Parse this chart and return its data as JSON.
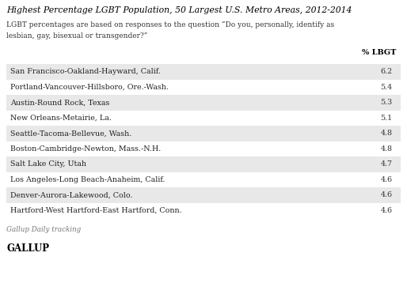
{
  "title": "Highest Percentage LGBT Population, 50 Largest U.S. Metro Areas, 2012-2014",
  "subtitle_line1": "LGBT percentages are based on responses to the question “Do you, personally, identify as",
  "subtitle_line2": "lesbian, gay, bisexual or transgender?”",
  "column_header": "% LBGT",
  "rows": [
    {
      "city": "San Francisco-Oakland-Hayward, Calif.",
      "value": "6.2",
      "shaded": true
    },
    {
      "city": "Portland-Vancouver-Hillsboro, Ore.-Wash.",
      "value": "5.4",
      "shaded": false
    },
    {
      "city": "Austin-Round Rock, Texas",
      "value": "5.3",
      "shaded": true
    },
    {
      "city": "New Orleans-Metairie, La.",
      "value": "5.1",
      "shaded": false
    },
    {
      "city": "Seattle-Tacoma-Bellevue, Wash.",
      "value": "4.8",
      "shaded": true
    },
    {
      "city": "Boston-Cambridge-Newton, Mass.-N.H.",
      "value": "4.8",
      "shaded": false
    },
    {
      "city": "Salt Lake City, Utah",
      "value": "4.7",
      "shaded": true
    },
    {
      "city": "Los Angeles-Long Beach-Anaheim, Calif.",
      "value": "4.6",
      "shaded": false
    },
    {
      "city": "Denver-Aurora-Lakewood, Colo.",
      "value": "4.6",
      "shaded": true
    },
    {
      "city": "Hartford-West Hartford-East Hartford, Conn.",
      "value": "4.6",
      "shaded": false
    }
  ],
  "footer_tracking": "Gallup Daily tracking",
  "footer_brand": "GALLUP",
  "shaded_color": "#e8e8e8",
  "white_color": "#ffffff",
  "bg_color": "#ffffff",
  "title_color": "#000000",
  "subtitle_color": "#333333",
  "text_color": "#222222",
  "value_color": "#333333",
  "header_value_color": "#000000",
  "footer_tracking_color": "#777777",
  "footer_brand_color": "#000000"
}
